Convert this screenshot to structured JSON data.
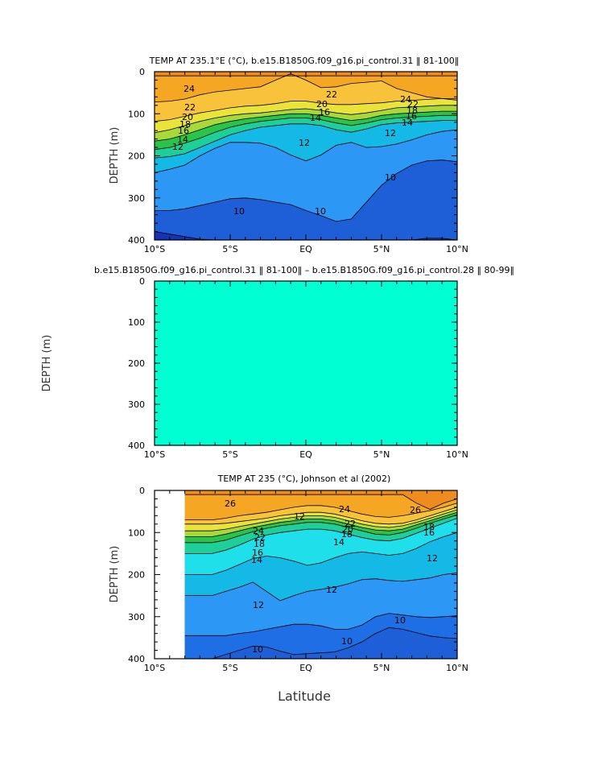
{
  "chart_data": [
    {
      "type": "heatmap",
      "title": "TEMP AT 235.1°E (°C), b.e15.B1850G.f09_g16.pi_control.31 ‖ 81-100‖",
      "ylabel": "DEPTH (m)",
      "xlabel": "",
      "x_ticks": [
        "10°S",
        "5°S",
        "EQ",
        "5°N",
        "10°N"
      ],
      "y_ticks": [
        "0",
        "100",
        "200",
        "300",
        "400"
      ],
      "xlim": [
        -10,
        10
      ],
      "ylim": [
        0,
        400
      ],
      "contour_labels": [
        "24",
        "22",
        "20",
        "18",
        "16",
        "14",
        "12",
        "22",
        "20",
        "16",
        "14",
        "12",
        "24",
        "22",
        "18",
        "16",
        "14",
        "12",
        "10",
        "10",
        "10"
      ],
      "layers": [
        {
          "name": "26",
          "color": "#f08c1e",
          "depth": [
            10,
            10,
            10,
            10,
            10,
            10,
            10,
            10,
            10,
            10,
            10,
            10,
            10,
            10,
            10,
            10,
            10,
            10,
            10,
            10,
            10
          ]
        },
        {
          "name": "24",
          "color": "#f5a623",
          "depth": [
            72,
            70,
            65,
            55,
            48,
            44,
            40,
            36,
            20,
            5,
            20,
            38,
            36,
            28,
            25,
            22,
            40,
            50,
            60,
            64,
            68
          ]
        },
        {
          "name": "22",
          "color": "#f8c33a",
          "depth": [
            118,
            114,
            106,
            98,
            92,
            86,
            82,
            80,
            76,
            70,
            70,
            75,
            78,
            78,
            76,
            74,
            70,
            68,
            66,
            64,
            64
          ]
        },
        {
          "name": "20",
          "color": "#e9e33a",
          "depth": [
            145,
            138,
            128,
            118,
            110,
            104,
            100,
            98,
            94,
            90,
            88,
            92,
            98,
            102,
            98,
            92,
            86,
            84,
            82,
            80,
            80
          ]
        },
        {
          "name": "18",
          "color": "#a8d83a",
          "depth": [
            165,
            160,
            150,
            138,
            126,
            118,
            112,
            108,
            104,
            100,
            100,
            104,
            110,
            116,
            112,
            104,
            100,
            98,
            96,
            94,
            94
          ]
        },
        {
          "name": "16",
          "color": "#2bc44a",
          "depth": [
            185,
            180,
            170,
            158,
            144,
            132,
            124,
            118,
            114,
            110,
            110,
            114,
            122,
            128,
            122,
            114,
            110,
            108,
            106,
            104,
            104
          ]
        },
        {
          "name": "14",
          "color": "#1fcf9a",
          "depth": [
            205,
            202,
            195,
            180,
            165,
            150,
            140,
            132,
            128,
            124,
            124,
            128,
            138,
            144,
            136,
            126,
            122,
            120,
            118,
            116,
            116
          ]
        },
        {
          "name": "12",
          "color": "#15b9e6",
          "depth": [
            240,
            232,
            222,
            200,
            182,
            168,
            168,
            170,
            180,
            198,
            212,
            198,
            175,
            168,
            180,
            178,
            172,
            162,
            150,
            142,
            138
          ]
        },
        {
          "name": "10",
          "color": "#2c97f5",
          "depth": [
            330,
            330,
            326,
            318,
            310,
            302,
            300,
            304,
            310,
            316,
            330,
            342,
            356,
            350,
            310,
            270,
            242,
            222,
            212,
            210,
            214
          ]
        },
        {
          "name": "8",
          "color": "#1e5fd8",
          "depth": [
            380,
            386,
            392,
            398,
            400,
            400,
            400,
            400,
            400,
            400,
            400,
            400,
            400,
            400,
            400,
            400,
            400,
            400,
            396,
            396,
            400
          ]
        },
        {
          "name": "6",
          "color": "#1334b8",
          "depth": [
            400,
            400,
            400,
            400,
            400,
            400,
            400,
            400,
            400,
            400,
            400,
            400,
            400,
            400,
            400,
            400,
            400,
            400,
            400,
            400,
            400
          ]
        }
      ]
    },
    {
      "type": "heatmap",
      "title": "b.e15.B1850G.f09_g16.pi_control.31 ‖ 81-100‖ – b.e15.B1850G.f09_g16.pi_control.28 ‖ 80-99‖",
      "ylabel": "DEPTH (m)",
      "xlabel": "",
      "x_ticks": [
        "10°S",
        "5°S",
        "EQ",
        "5°N",
        "10°N"
      ],
      "y_ticks": [
        "0",
        "100",
        "200",
        "300",
        "400"
      ],
      "xlim": [
        -10,
        10
      ],
      "ylim": [
        0,
        400
      ],
      "fill_color": "#00ffd2",
      "layers": []
    },
    {
      "type": "heatmap",
      "title": "TEMP AT 235 (°C), Johnson et al (2002)",
      "ylabel": "DEPTH (m)",
      "xlabel": "Latitude",
      "x_ticks": [
        "10°S",
        "5°S",
        "EQ",
        "5°N",
        "10°N"
      ],
      "y_ticks": [
        "0",
        "100",
        "200",
        "300",
        "400"
      ],
      "xlim": [
        -10,
        10
      ],
      "ylim": [
        0,
        400
      ],
      "data_xmin": -8,
      "contour_labels": [
        "26",
        "24",
        "22",
        "18",
        "16",
        "14",
        "24",
        "22",
        "20",
        "18",
        "14",
        "26",
        "18",
        "16",
        "12",
        "12",
        "12",
        "12",
        "10",
        "10",
        "10"
      ],
      "layers": [
        {
          "name": "28",
          "color": "#ec4a1e",
          "depth": [
            0,
            0,
            0,
            0,
            0,
            0,
            0,
            0,
            0,
            0,
            0,
            0,
            0,
            0,
            0,
            0,
            0,
            0,
            0,
            0,
            0
          ]
        },
        {
          "name": "26",
          "color": "#f08c1e",
          "depth": [
            10,
            10,
            10,
            10,
            10,
            10,
            10,
            10,
            10,
            10,
            10,
            10,
            10,
            10,
            10,
            10,
            10,
            30,
            45,
            30,
            20
          ]
        },
        {
          "name": "24",
          "color": "#f5a623",
          "depth": [
            70,
            70,
            70,
            66,
            60,
            56,
            52,
            46,
            40,
            36,
            36,
            40,
            48,
            56,
            62,
            64,
            60,
            54,
            48,
            40,
            30
          ]
        },
        {
          "name": "22",
          "color": "#f8c33a",
          "depth": [
            80,
            80,
            80,
            78,
            74,
            70,
            66,
            60,
            56,
            52,
            52,
            56,
            64,
            72,
            78,
            80,
            78,
            70,
            60,
            50,
            40
          ]
        },
        {
          "name": "20",
          "color": "#e9e33a",
          "depth": [
            96,
            96,
            96,
            92,
            86,
            80,
            74,
            68,
            64,
            60,
            60,
            64,
            72,
            80,
            86,
            88,
            84,
            76,
            66,
            56,
            46
          ]
        },
        {
          "name": "18",
          "color": "#a8d83a",
          "depth": [
            110,
            110,
            110,
            104,
            96,
            88,
            82,
            76,
            72,
            68,
            68,
            72,
            80,
            88,
            94,
            96,
            92,
            82,
            72,
            62,
            52
          ]
        },
        {
          "name": "16",
          "color": "#2bc44a",
          "depth": [
            124,
            124,
            124,
            118,
            108,
            98,
            90,
            84,
            80,
            76,
            76,
            80,
            88,
            96,
            104,
            106,
            100,
            90,
            78,
            68,
            58
          ]
        },
        {
          "name": "14",
          "color": "#1fcf9a",
          "depth": [
            150,
            150,
            150,
            142,
            130,
            116,
            106,
            100,
            96,
            92,
            92,
            96,
            104,
            112,
            118,
            120,
            114,
            102,
            90,
            78,
            66
          ]
        },
        {
          "name": "12",
          "color": "#1fe0ea",
          "depth": [
            200,
            200,
            200,
            190,
            176,
            162,
            156,
            160,
            168,
            178,
            172,
            160,
            150,
            146,
            150,
            154,
            150,
            138,
            122,
            110,
            100
          ]
        },
        {
          "name": "11",
          "color": "#15b9e6",
          "depth": [
            250,
            250,
            250,
            240,
            230,
            218,
            240,
            262,
            250,
            240,
            235,
            230,
            222,
            212,
            210,
            214,
            216,
            212,
            208,
            200,
            196
          ]
        },
        {
          "name": "10",
          "color": "#2c97f5",
          "depth": [
            345,
            345,
            345,
            345,
            340,
            336,
            330,
            324,
            318,
            318,
            322,
            330,
            330,
            320,
            300,
            292,
            296,
            300,
            302,
            300,
            298
          ]
        },
        {
          "name": "9",
          "color": "#1e6fe6",
          "depth": [
            400,
            400,
            400,
            390,
            380,
            370,
            372,
            382,
            390,
            388,
            386,
            384,
            374,
            360,
            340,
            326,
            330,
            338,
            346,
            350,
            352
          ]
        },
        {
          "name": "8",
          "color": "#1e5fd8",
          "depth": [
            400,
            400,
            400,
            400,
            400,
            400,
            400,
            400,
            400,
            400,
            400,
            400,
            400,
            400,
            400,
            400,
            400,
            400,
            400,
            400,
            400
          ]
        }
      ]
    }
  ]
}
